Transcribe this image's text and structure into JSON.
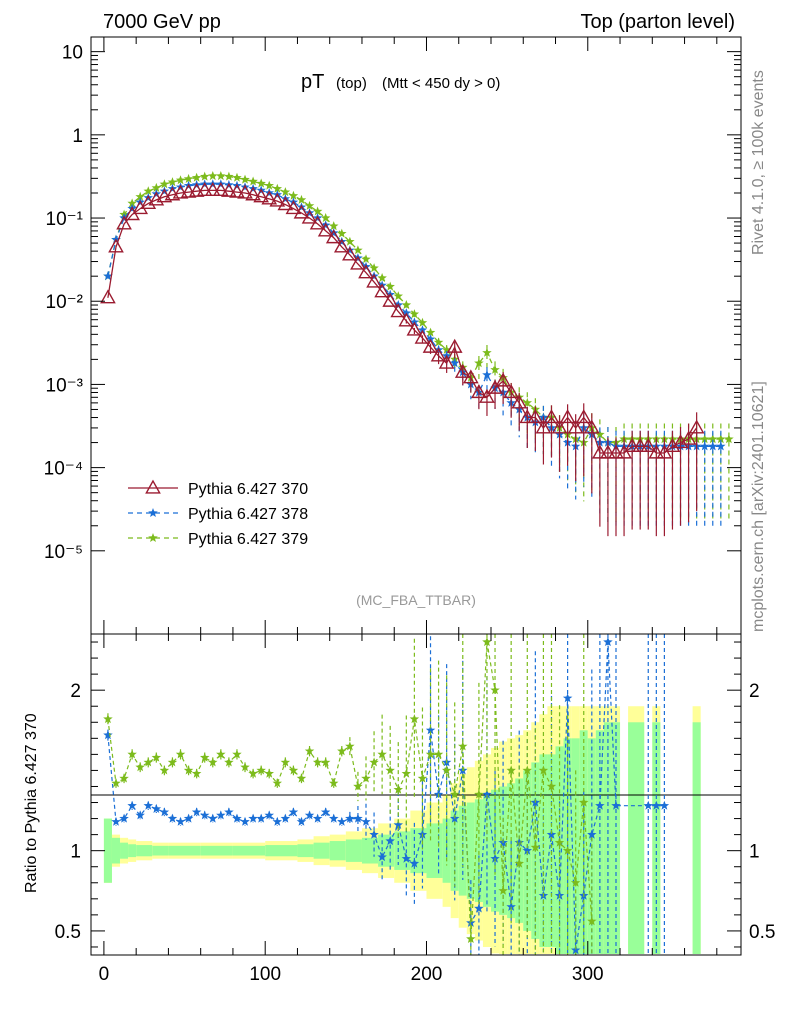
{
  "header": {
    "left_title": "7000 GeV pp",
    "right_title": "Top (parton level)"
  },
  "side_labels": {
    "rivet": "Rivet 4.1.0, ≥ 100k events",
    "mcplots": "mcplots.cern.ch [arXiv:2401.10621]"
  },
  "plot_title": {
    "main": "pT",
    "sub1": "(top)",
    "sub2": "(Mtt < 450 dy > 0)"
  },
  "analysis_tag": "(MC_FBA_TTBAR)",
  "ratio_ylabel": "Ratio to Pythia 6.427 370",
  "colors": {
    "s370": "#9b1b30",
    "s378": "#1b6fd6",
    "s379": "#7cbb1c",
    "band_inner": "#99ff99",
    "band_outer": "#ffff99"
  },
  "chart_data": [
    {
      "type": "line",
      "scale": "log",
      "xlim": [
        -8,
        395
      ],
      "ylim": [
        1e-06,
        15
      ],
      "x_ticks": [
        "0",
        "100",
        "200",
        "300"
      ],
      "y_ticks": [
        "10",
        "1",
        "10⁻¹",
        "10⁻²",
        "10⁻³",
        "10⁻⁴",
        "10⁻⁵"
      ],
      "y_tick_values": [
        10,
        1,
        0.1,
        0.01,
        0.001,
        0.0001,
        1e-05
      ],
      "bin_width": 5,
      "series": [
        {
          "name": "Pythia 6.427 370",
          "marker": "triangle",
          "x": [
            2.5,
            7.5,
            12.5,
            17.5,
            22.5,
            27.5,
            32.5,
            37.5,
            42.5,
            47.5,
            52.5,
            57.5,
            62.5,
            67.5,
            72.5,
            77.5,
            82.5,
            87.5,
            92.5,
            97.5,
            102.5,
            107.5,
            112.5,
            117.5,
            122.5,
            127.5,
            132.5,
            137.5,
            142.5,
            147.5,
            152.5,
            157.5,
            162.5,
            167.5,
            172.5,
            177.5,
            182.5,
            187.5,
            192.5,
            197.5,
            202.5,
            207.5,
            212.5,
            217.5,
            222.5,
            227.5,
            232.5,
            237.5,
            242.5,
            247.5,
            252.5,
            257.5,
            262.5,
            267.5,
            272.5,
            277.5,
            282.5,
            287.5,
            292.5,
            297.5,
            302.5,
            307.5,
            312.5,
            317.5,
            322.5,
            327.5,
            332.5,
            337.5,
            342.5,
            347.5,
            352.5,
            357.5,
            362.5,
            367.5
          ],
          "values": [
            0.011,
            0.045,
            0.085,
            0.11,
            0.13,
            0.15,
            0.165,
            0.18,
            0.19,
            0.2,
            0.205,
            0.21,
            0.215,
            0.215,
            0.215,
            0.21,
            0.205,
            0.2,
            0.19,
            0.18,
            0.17,
            0.16,
            0.145,
            0.13,
            0.115,
            0.1,
            0.085,
            0.07,
            0.058,
            0.045,
            0.036,
            0.028,
            0.022,
            0.017,
            0.013,
            0.01,
            0.0075,
            0.0058,
            0.0045,
            0.0036,
            0.0028,
            0.0022,
            0.0018,
            0.0028,
            0.0014,
            0.0012,
            0.0008,
            0.0007,
            0.0009,
            0.0011,
            0.0008,
            0.0006,
            0.0004,
            0.0004,
            0.0003,
            0.0004,
            0.0003,
            0.0004,
            0.0003,
            0.0004,
            0.0003,
            0.00015,
            0.00015,
            0.00015,
            0.00015,
            0.00018,
            0.00018,
            0.00018,
            0.00015,
            0.00015,
            0.00018,
            0.0002,
            0.00022,
            0.0003
          ]
        },
        {
          "name": "Pythia 6.427 378",
          "marker": "star",
          "x": [
            2.5,
            7.5,
            12.5,
            17.5,
            22.5,
            27.5,
            32.5,
            37.5,
            42.5,
            47.5,
            52.5,
            57.5,
            62.5,
            67.5,
            72.5,
            77.5,
            82.5,
            87.5,
            92.5,
            97.5,
            102.5,
            107.5,
            112.5,
            117.5,
            122.5,
            127.5,
            132.5,
            137.5,
            142.5,
            147.5,
            152.5,
            157.5,
            162.5,
            167.5,
            172.5,
            177.5,
            182.5,
            187.5,
            192.5,
            197.5,
            202.5,
            207.5,
            212.5,
            217.5,
            222.5,
            227.5,
            232.5,
            237.5,
            242.5,
            247.5,
            252.5,
            257.5,
            262.5,
            267.5,
            272.5,
            277.5,
            282.5,
            287.5,
            292.5,
            297.5,
            302.5,
            307.5,
            312.5,
            317.5,
            322.5,
            327.5,
            332.5,
            337.5,
            342.5,
            347.5,
            352.5,
            357.5,
            362.5,
            367.5,
            372.5,
            377.5,
            382.5
          ],
          "values": [
            0.02,
            0.055,
            0.1,
            0.13,
            0.155,
            0.175,
            0.195,
            0.21,
            0.225,
            0.235,
            0.245,
            0.25,
            0.255,
            0.255,
            0.255,
            0.25,
            0.245,
            0.235,
            0.225,
            0.215,
            0.2,
            0.19,
            0.17,
            0.155,
            0.135,
            0.115,
            0.1,
            0.082,
            0.066,
            0.052,
            0.041,
            0.033,
            0.026,
            0.02,
            0.0155,
            0.012,
            0.009,
            0.0072,
            0.0056,
            0.0045,
            0.0035,
            0.0026,
            0.0022,
            0.0018,
            0.0014,
            0.001,
            0.0008,
            0.0013,
            0.0009,
            0.0008,
            0.0006,
            0.0005,
            0.0004,
            0.00035,
            0.0004,
            0.0003,
            0.00025,
            0.0002,
            0.00018,
            0.0003,
            0.00025,
            0.0002,
            0.0002,
            0.00018,
            0.00018,
            0.00018,
            0.00018,
            0.00018,
            0.00018,
            0.00018,
            0.00018,
            0.00018,
            0.00018,
            0.00018,
            0.00018,
            0.00018,
            0.00018
          ]
        },
        {
          "name": "Pythia 6.427 379",
          "marker": "star",
          "x": [
            2.5,
            7.5,
            12.5,
            17.5,
            22.5,
            27.5,
            32.5,
            37.5,
            42.5,
            47.5,
            52.5,
            57.5,
            62.5,
            67.5,
            72.5,
            77.5,
            82.5,
            87.5,
            92.5,
            97.5,
            102.5,
            107.5,
            112.5,
            117.5,
            122.5,
            127.5,
            132.5,
            137.5,
            142.5,
            147.5,
            152.5,
            157.5,
            162.5,
            167.5,
            172.5,
            177.5,
            182.5,
            187.5,
            192.5,
            197.5,
            202.5,
            207.5,
            212.5,
            217.5,
            222.5,
            227.5,
            232.5,
            237.5,
            242.5,
            247.5,
            252.5,
            257.5,
            262.5,
            267.5,
            272.5,
            277.5,
            282.5,
            287.5,
            292.5,
            297.5,
            302.5,
            307.5,
            312.5,
            317.5,
            322.5,
            327.5,
            332.5,
            337.5,
            342.5,
            347.5,
            352.5,
            357.5,
            362.5,
            367.5,
            372.5,
            377.5,
            382.5,
            387.5
          ],
          "values": [
            0.02,
            0.055,
            0.11,
            0.15,
            0.18,
            0.21,
            0.23,
            0.255,
            0.27,
            0.285,
            0.295,
            0.305,
            0.315,
            0.32,
            0.32,
            0.315,
            0.305,
            0.29,
            0.275,
            0.26,
            0.245,
            0.225,
            0.205,
            0.185,
            0.165,
            0.14,
            0.12,
            0.1,
            0.08,
            0.065,
            0.052,
            0.041,
            0.032,
            0.025,
            0.019,
            0.015,
            0.0115,
            0.009,
            0.007,
            0.0055,
            0.0042,
            0.0032,
            0.0026,
            0.002,
            0.0016,
            0.0012,
            0.0018,
            0.0024,
            0.0015,
            0.0012,
            0.0008,
            0.0007,
            0.0006,
            0.0005,
            0.0004,
            0.0004,
            0.0003,
            0.00025,
            0.00022,
            0.0002,
            0.0003,
            0.00025,
            0.0002,
            0.0002,
            0.00022,
            0.00022,
            0.00022,
            0.00022,
            0.00022,
            0.00022,
            0.00022,
            0.00022,
            0.00022,
            0.00022,
            0.00022,
            0.00022,
            0.00022,
            0.00022
          ]
        }
      ]
    },
    {
      "type": "line",
      "xlim": [
        -8,
        395
      ],
      "ylim": [
        0.35,
        2.35
      ],
      "ylabel": "Ratio to Pythia 6.427 370",
      "y_ticks": [
        "2",
        "1",
        "0.5"
      ],
      "y_tick_values": [
        2,
        1,
        0.5
      ],
      "x_ticks": [
        "0",
        "100",
        "200",
        "300"
      ],
      "band_x_edges": [
        0,
        5,
        10,
        15,
        20,
        30,
        40,
        60,
        80,
        100,
        120,
        130,
        140,
        150,
        160,
        170,
        180,
        190,
        200,
        210,
        215,
        220,
        225,
        230,
        235,
        240,
        245,
        250,
        255,
        260,
        265,
        270,
        275,
        280,
        285,
        290,
        295,
        300,
        305,
        310,
        315,
        320,
        325,
        335,
        340,
        345,
        365,
        370
      ],
      "band_inner": [
        0.2,
        0.08,
        0.05,
        0.04,
        0.035,
        0.03,
        0.03,
        0.03,
        0.03,
        0.035,
        0.04,
        0.05,
        0.06,
        0.07,
        0.08,
        0.1,
        0.12,
        0.14,
        0.17,
        0.2,
        0.25,
        0.28,
        0.3,
        0.32,
        0.35,
        0.38,
        0.4,
        0.42,
        0.45,
        0.5,
        0.55,
        0.6,
        0.6,
        0.65,
        0.7,
        0.7,
        0.75,
        0.7,
        0.75,
        0.8,
        0.8,
        0.0,
        0.8,
        0.0,
        0.8,
        0.0,
        0.8
      ],
      "band_outer": [
        0.2,
        0.1,
        0.08,
        0.07,
        0.06,
        0.05,
        0.05,
        0.05,
        0.05,
        0.06,
        0.07,
        0.09,
        0.1,
        0.12,
        0.14,
        0.17,
        0.2,
        0.25,
        0.3,
        0.35,
        0.42,
        0.48,
        0.52,
        0.56,
        0.6,
        0.64,
        0.68,
        0.7,
        0.72,
        0.75,
        0.8,
        0.85,
        0.9,
        0.9,
        0.9,
        0.9,
        0.9,
        0.9,
        0.9,
        0.9,
        0.9,
        0.0,
        0.9,
        0.0,
        0.9,
        0.0,
        0.9
      ],
      "series": [
        {
          "name": "Pythia 6.427 378 / 370",
          "x": [
            2.5,
            7.5,
            12.5,
            17.5,
            22.5,
            27.5,
            32.5,
            37.5,
            42.5,
            47.5,
            52.5,
            57.5,
            62.5,
            67.5,
            72.5,
            77.5,
            82.5,
            87.5,
            92.5,
            97.5,
            102.5,
            107.5,
            112.5,
            117.5,
            122.5,
            127.5,
            132.5,
            137.5,
            142.5,
            147.5,
            152.5,
            157.5,
            162.5,
            167.5,
            172.5,
            177.5,
            182.5,
            187.5,
            192.5,
            197.5,
            202.5,
            207.5,
            212.5,
            217.5,
            222.5,
            227.5,
            232.5,
            237.5,
            242.5,
            247.5,
            252.5,
            257.5,
            262.5,
            267.5,
            272.5,
            277.5,
            282.5,
            287.5,
            292.5,
            297.5,
            302.5,
            307.5,
            312.5,
            317.5,
            337.5,
            342.5,
            347.5
          ],
          "values": [
            1.72,
            1.18,
            1.2,
            1.28,
            1.22,
            1.28,
            1.26,
            1.24,
            1.2,
            1.18,
            1.2,
            1.24,
            1.22,
            1.2,
            1.22,
            1.24,
            1.2,
            1.18,
            1.2,
            1.2,
            1.22,
            1.18,
            1.2,
            1.24,
            1.18,
            1.22,
            1.2,
            1.24,
            1.2,
            1.18,
            1.2,
            1.2,
            1.18,
            1.1,
            0.96,
            1.06,
            1.16,
            0.95,
            0.92,
            1.1,
            1.75,
            1.35,
            1.55,
            1.2,
            1.5,
            0.55,
            0.64,
            1.35,
            0.95,
            1.05,
            0.65,
            1.05,
            1.0,
            1.3,
            0.72,
            1.1,
            0.72,
            1.95,
            0.38,
            0.72,
            1.1,
            1.28,
            2.3,
            1.28,
            1.28,
            1.28,
            1.28
          ]
        },
        {
          "name": "Pythia 6.427 379 / 370",
          "x": [
            2.5,
            7.5,
            12.5,
            17.5,
            22.5,
            27.5,
            32.5,
            37.5,
            42.5,
            47.5,
            52.5,
            57.5,
            62.5,
            67.5,
            72.5,
            77.5,
            82.5,
            87.5,
            92.5,
            97.5,
            102.5,
            107.5,
            112.5,
            117.5,
            122.5,
            127.5,
            132.5,
            137.5,
            142.5,
            147.5,
            152.5,
            157.5,
            162.5,
            167.5,
            172.5,
            177.5,
            182.5,
            187.5,
            192.5,
            197.5,
            202.5,
            207.5,
            212.5,
            217.5,
            222.5,
            227.5,
            232.5,
            237.5,
            242.5,
            247.5,
            252.5,
            257.5,
            262.5,
            267.5,
            272.5,
            277.5,
            282.5,
            287.5,
            292.5,
            297.5,
            302.5
          ],
          "values": [
            1.82,
            1.42,
            1.45,
            1.6,
            1.52,
            1.55,
            1.58,
            1.5,
            1.55,
            1.6,
            1.5,
            1.48,
            1.58,
            1.55,
            1.6,
            1.55,
            1.6,
            1.52,
            1.48,
            1.5,
            1.48,
            1.42,
            1.55,
            1.5,
            1.45,
            1.62,
            1.55,
            1.55,
            1.42,
            1.62,
            1.65,
            1.4,
            1.45,
            1.55,
            1.6,
            1.5,
            1.38,
            1.48,
            1.82,
            1.45,
            1.6,
            1.6,
            1.5,
            1.35,
            1.65,
            0.45,
            1.35,
            2.3,
            2.0,
            0.75,
            1.5,
            0.92,
            1.5,
            1.02,
            1.5,
            1.4,
            1.05,
            1.0,
            0.8,
            1.3,
            0.56
          ]
        }
      ]
    }
  ]
}
